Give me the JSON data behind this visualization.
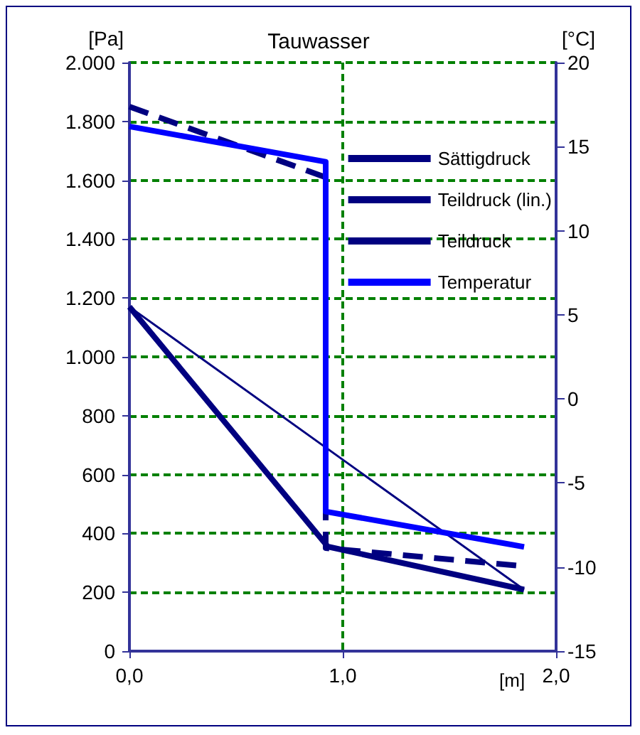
{
  "chart_data": {
    "type": "line",
    "title": "Tauwasser",
    "xlabel": "[m]",
    "ylabel": "[Pa]",
    "y2label": "[°C]",
    "xlim": [
      0,
      2
    ],
    "xticks": [
      {
        "value": 0,
        "label": "0,0"
      },
      {
        "value": 1,
        "label": "1,0"
      },
      {
        "value": 2,
        "label": "2,0"
      }
    ],
    "ylim": [
      0,
      2000
    ],
    "yticks": [
      0,
      200,
      400,
      600,
      800,
      {
        "value": 1000,
        "label": "1.000"
      },
      {
        "value": 1200,
        "label": "1.200"
      },
      {
        "value": 1400,
        "label": "1.400"
      },
      {
        "value": 1600,
        "label": "1.600"
      },
      {
        "value": 1800,
        "label": "1.800"
      },
      {
        "value": 2000,
        "label": "2.000"
      }
    ],
    "y2lim": [
      -15,
      20
    ],
    "y2ticks": [
      -15,
      -10,
      -5,
      0,
      5,
      10,
      15,
      20
    ],
    "grid": true,
    "legend": "top right",
    "marker": "none",
    "series": [
      {
        "name": "Sättigdruck",
        "color": "#000080",
        "line_style": "dashed",
        "x": [
          0,
          0.92,
          0.92,
          1.83
        ],
        "values": [
          1850,
          1610,
          350,
          290
        ]
      },
      {
        "name": "Teildruck (lin.)",
        "color": "#000080",
        "line_style": "solid",
        "x": [
          0,
          1.85
        ],
        "values": [
          1170,
          209
        ]
      },
      {
        "name": "Teildruck",
        "color": "#000080",
        "line_style": "solid",
        "x": [
          0,
          0.93,
          1.85
        ],
        "values": [
          1170,
          355,
          209
        ]
      },
      {
        "name": "Temperatur",
        "color": "#0000ff",
        "line_style": "solid",
        "axis": "y2",
        "x": [
          0,
          0.92,
          0.92,
          1.85
        ],
        "values": [
          16.2,
          14.1,
          -6.7,
          -8.8
        ]
      }
    ]
  }
}
